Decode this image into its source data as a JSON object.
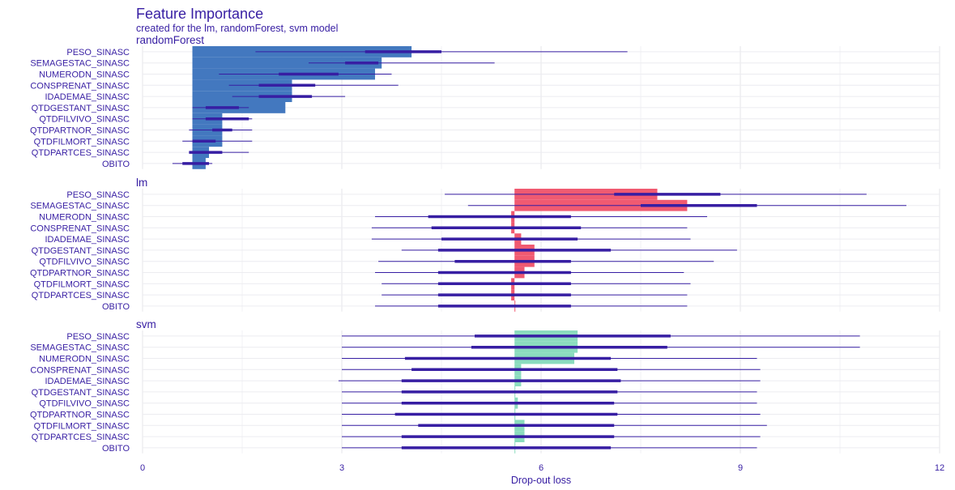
{
  "chart_data": {
    "type": "bar",
    "title": "Feature Importance",
    "subtitle": "created for the lm, randomForest, svm model",
    "xlabel": "Drop-out loss",
    "xlim": [
      0,
      12
    ],
    "xticks": [
      0,
      3,
      6,
      9,
      12
    ],
    "features": [
      "PESO_SINASC",
      "SEMAGESTAC_SINASC",
      "NUMERODN_SINASC",
      "CONSPRENAT_SINASC",
      "IDADEMAE_SINASC",
      "QTDGESTANT_SINASC",
      "QTDFILVIVO_SINASC",
      "QTDPARTNOR_SINASC",
      "QTDFILMORT_SINASC",
      "QTDPARTCES_SINASC",
      "OBITO"
    ],
    "panels": [
      {
        "name": "randomForest",
        "color": "#4378bf",
        "baseline": 0.75,
        "values": [
          4.05,
          3.6,
          3.5,
          2.25,
          2.25,
          2.15,
          1.2,
          1.2,
          1.2,
          1.0,
          0.95
        ],
        "box_low": [
          3.35,
          3.05,
          2.05,
          1.75,
          1.75,
          0.95,
          0.95,
          1.05,
          0.75,
          0.7,
          0.6
        ],
        "box_high": [
          4.5,
          3.55,
          2.95,
          2.6,
          2.55,
          1.45,
          1.6,
          1.35,
          1.1,
          1.2,
          1.0
        ],
        "whisker_low": [
          1.7,
          2.5,
          1.15,
          1.3,
          1.35,
          0.75,
          0.75,
          0.7,
          0.6,
          0.7,
          0.45
        ],
        "whisker_high": [
          7.3,
          5.3,
          3.75,
          3.85,
          3.05,
          1.6,
          1.65,
          1.65,
          1.65,
          1.6,
          1.05
        ]
      },
      {
        "name": "lm",
        "color": "#f05a71",
        "baseline": 5.6,
        "values": [
          7.75,
          8.2,
          5.55,
          5.55,
          5.7,
          5.9,
          5.9,
          5.75,
          5.55,
          5.55,
          5.6
        ],
        "box_low": [
          7.1,
          7.5,
          4.3,
          4.35,
          4.5,
          4.45,
          4.7,
          4.45,
          4.45,
          4.45,
          4.45
        ],
        "box_high": [
          8.7,
          9.25,
          6.45,
          6.6,
          6.55,
          7.05,
          6.45,
          6.45,
          6.45,
          6.45,
          6.45
        ],
        "whisker_low": [
          4.55,
          4.9,
          3.5,
          3.45,
          3.45,
          3.9,
          3.55,
          3.5,
          3.6,
          3.6,
          3.5
        ],
        "whisker_high": [
          10.9,
          11.5,
          8.5,
          8.2,
          8.25,
          8.95,
          8.6,
          8.15,
          8.25,
          8.2,
          8.2
        ]
      },
      {
        "name": "svm",
        "color": "#8bdcbe",
        "baseline": 5.6,
        "values": [
          6.55,
          6.55,
          6.5,
          5.7,
          5.7,
          5.6,
          5.65,
          5.6,
          5.75,
          5.75,
          5.6
        ],
        "box_low": [
          5.0,
          4.95,
          3.95,
          4.05,
          3.9,
          3.9,
          3.9,
          3.8,
          4.15,
          3.9,
          3.9
        ],
        "box_high": [
          7.95,
          7.9,
          7.05,
          7.15,
          7.2,
          7.15,
          7.1,
          7.15,
          7.1,
          7.1,
          7.05
        ],
        "whisker_low": [
          3.0,
          3.0,
          3.0,
          3.0,
          2.95,
          3.0,
          3.0,
          3.0,
          3.0,
          3.0,
          3.0
        ],
        "whisker_high": [
          10.8,
          10.8,
          9.25,
          9.3,
          9.3,
          9.25,
          9.25,
          9.3,
          9.4,
          9.3,
          9.25
        ]
      }
    ],
    "grid": true,
    "legend": "none"
  }
}
